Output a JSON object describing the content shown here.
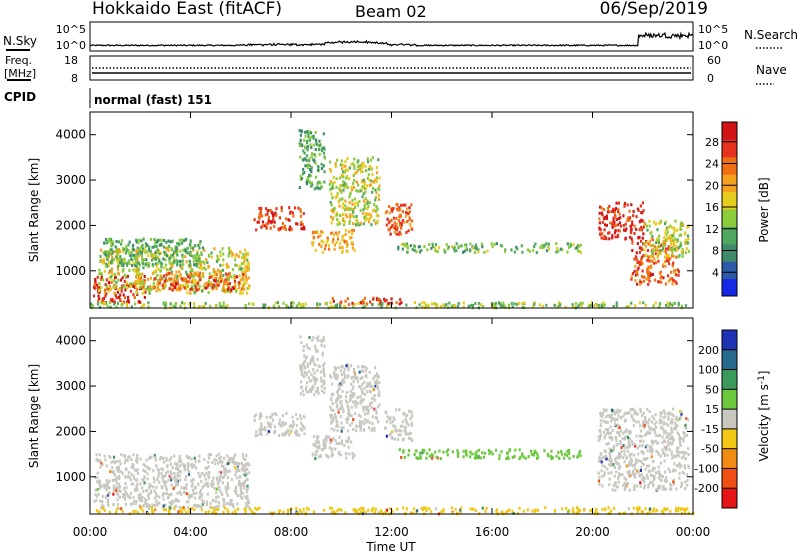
{
  "header": {
    "station": "Hokkaido East (fitACF)",
    "beam": "Beam 02",
    "date": "06/Sep/2019"
  },
  "noise_panel": {
    "left_label": "N.Sky",
    "right_label": "N.Search",
    "tick_top": "10^5",
    "tick_bottom": "10^0"
  },
  "freq_panel": {
    "label_line1": "Freq.",
    "label_line2": "[MHz]",
    "left_tick_top": "18",
    "left_tick_bottom": "8",
    "right_label": "Nave",
    "right_tick_top": "60",
    "right_tick_bottom": "0"
  },
  "cpid": {
    "label": "CPID",
    "value": "normal (fast) 151"
  },
  "time_axis": {
    "label": "Time UT",
    "ticks": [
      "00:00",
      "04:00",
      "08:00",
      "12:00",
      "16:00",
      "20:00",
      "00:00"
    ]
  },
  "chart_data": [
    {
      "type": "heatmap",
      "name": "power",
      "xlabel": "Time UT",
      "ylabel": "Slant Range [km]",
      "xlim": [
        0,
        24
      ],
      "ylim": [
        180,
        4500
      ],
      "y_ticks": [
        1000,
        2000,
        3000,
        4000
      ],
      "colorbar": {
        "label": "Power [dB]",
        "ticks": [
          "4",
          "8",
          "12",
          "16",
          "20",
          "24",
          "28"
        ],
        "colors": [
          "#1428e6",
          "#2a5aa8",
          "#3f8a6a",
          "#4fa860",
          "#8ccc3a",
          "#e6cc1e",
          "#f5a01e",
          "#f06e14",
          "#e6321e",
          "#d21414"
        ]
      },
      "regions": [
        {
          "t0": 0.1,
          "t1": 2.2,
          "r0": 300,
          "r1": 900,
          "level": 26
        },
        {
          "t0": 0.3,
          "t1": 6.3,
          "r0": 500,
          "r1": 1500,
          "level": 14
        },
        {
          "t0": 2.5,
          "t1": 6.1,
          "r0": 550,
          "r1": 950,
          "level": 22
        },
        {
          "t0": 0.5,
          "t1": 4.5,
          "r0": 1100,
          "r1": 1700,
          "level": 9
        },
        {
          "t0": 6.5,
          "t1": 8.5,
          "r0": 1900,
          "r1": 2400,
          "level": 24
        },
        {
          "t0": 8.8,
          "t1": 10.5,
          "r0": 1400,
          "r1": 1900,
          "level": 18
        },
        {
          "t0": 9.5,
          "t1": 11.5,
          "r0": 2000,
          "r1": 3500,
          "level": 14
        },
        {
          "t0": 11.7,
          "t1": 12.8,
          "r0": 1800,
          "r1": 2500,
          "level": 22
        },
        {
          "t0": 12.2,
          "t1": 19.5,
          "r0": 1400,
          "r1": 1600,
          "level": 10
        },
        {
          "t0": 20.2,
          "t1": 22.0,
          "r0": 1700,
          "r1": 2500,
          "level": 25
        },
        {
          "t0": 21.5,
          "t1": 23.4,
          "r0": 700,
          "r1": 1700,
          "level": 22
        },
        {
          "t0": 22.0,
          "t1": 23.8,
          "r0": 1300,
          "r1": 2100,
          "level": 13
        },
        {
          "t0": 8.3,
          "t1": 9.3,
          "r0": 2800,
          "r1": 4100,
          "level": 9
        },
        {
          "t0": 9.5,
          "t1": 12.5,
          "r0": 250,
          "r1": 400,
          "level": 24
        },
        {
          "t0": 0.0,
          "t1": 24.0,
          "r0": 180,
          "r1": 300,
          "level": 12
        }
      ]
    },
    {
      "type": "heatmap",
      "name": "velocity",
      "xlabel": "Time UT",
      "ylabel": "Slant Range [km]",
      "xlim": [
        0,
        24
      ],
      "ylim": [
        180,
        4500
      ],
      "y_ticks": [
        1000,
        2000,
        3000,
        4000
      ],
      "colorbar": {
        "label": "Velocity [m s^-1]",
        "ticks": [
          "200",
          "100",
          "50",
          "15",
          "-15",
          "-50",
          "-100",
          "-200"
        ],
        "colors": [
          "#1e32b4",
          "#2a6a8c",
          "#3c9a5a",
          "#6cc83c",
          "#c8c8c0",
          "#f0c814",
          "#f08c14",
          "#f05014",
          "#e61414"
        ]
      },
      "regions": [
        {
          "t0": 0.1,
          "t1": 6.3,
          "r0": 300,
          "r1": 1500,
          "level": 0
        },
        {
          "t0": 6.5,
          "t1": 8.5,
          "r0": 1900,
          "r1": 2400,
          "level": 0
        },
        {
          "t0": 8.8,
          "t1": 10.5,
          "r0": 1400,
          "r1": 1900,
          "level": 0
        },
        {
          "t0": 9.5,
          "t1": 11.5,
          "r0": 2000,
          "r1": 3500,
          "level": 0
        },
        {
          "t0": 11.7,
          "t1": 12.8,
          "r0": 1800,
          "r1": 2500,
          "level": 0
        },
        {
          "t0": 12.2,
          "t1": 19.5,
          "r0": 1400,
          "r1": 1600,
          "level": 30
        },
        {
          "t0": 20.2,
          "t1": 23.8,
          "r0": 700,
          "r1": 2500,
          "level": 0
        },
        {
          "t0": 8.3,
          "t1": 9.3,
          "r0": 2800,
          "r1": 4100,
          "level": 0
        },
        {
          "t0": 0.0,
          "t1": 24.0,
          "r0": 180,
          "r1": 320,
          "level": -40
        }
      ]
    }
  ]
}
